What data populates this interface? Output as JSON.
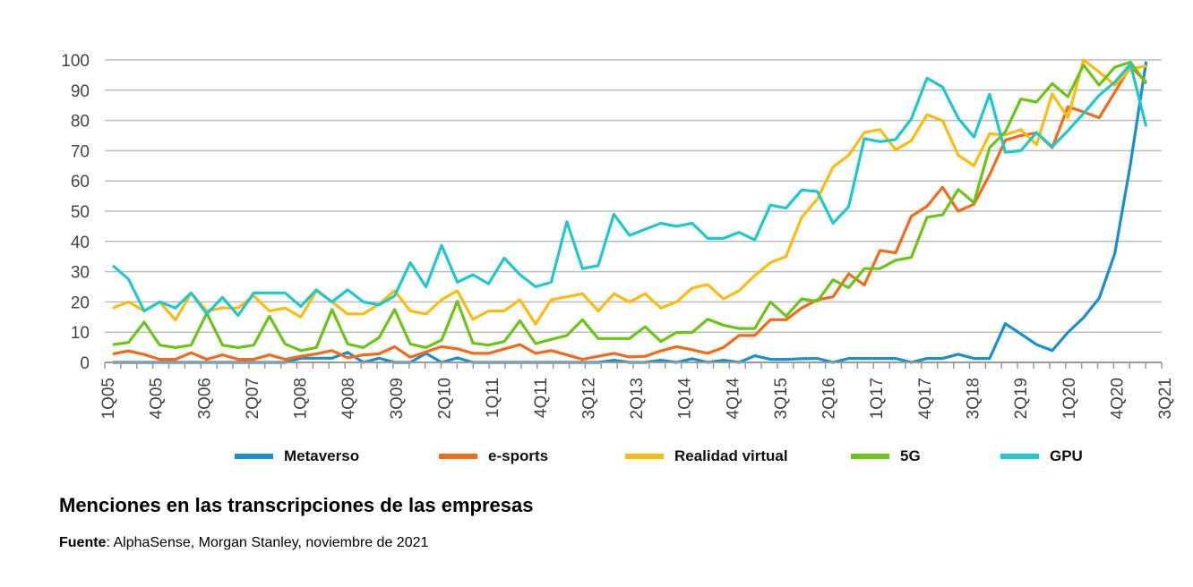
{
  "chart_data": {
    "type": "line",
    "title": "Menciones en las transcripciones de las empresas",
    "source_label": "Fuente",
    "source_text": ": AlphaSense, Morgan Stanley, noviembre de 2021",
    "ylim": [
      0,
      100
    ],
    "yticks": [
      0,
      10,
      20,
      30,
      40,
      50,
      60,
      70,
      80,
      90,
      100
    ],
    "grid": true,
    "legend_position": "bottom",
    "x_tick_labels": [
      "1Q05",
      "4Q05",
      "3Q06",
      "2Q07",
      "1Q08",
      "4Q08",
      "3Q09",
      "2Q10",
      "1Q11",
      "4Q11",
      "3Q12",
      "2Q13",
      "1Q14",
      "4Q14",
      "3Q15",
      "2Q16",
      "1Q17",
      "4Q17",
      "3Q18",
      "2Q19",
      "1Q20",
      "4Q20",
      "3Q21"
    ],
    "x_range": [
      "1Q05",
      "3Q21"
    ],
    "series": [
      {
        "name": "Metaverso",
        "color": "#1a8fd0",
        "values": [
          0,
          0,
          0,
          0,
          0,
          0,
          0,
          0,
          0,
          0,
          0,
          0,
          1.4,
          1.4,
          1.4,
          3.3,
          0,
          1.4,
          0,
          0,
          3,
          0,
          1.5,
          0,
          0,
          0,
          0,
          0,
          0,
          0,
          0,
          0,
          0.7,
          0,
          0,
          0.7,
          0,
          1.2,
          0,
          0.7,
          0,
          2.2,
          1,
          1,
          1.2,
          1.3,
          0,
          1.3,
          1.3,
          1.3,
          1.3,
          0,
          1.3,
          1.3,
          2.7,
          1.3,
          1.3,
          12.8,
          9.4,
          5.9,
          3.9,
          9.9,
          14.8,
          21.2,
          36,
          65.6,
          99.5
        ]
      },
      {
        "name": "e-sports",
        "color": "#f26a1b",
        "values": [
          2.8,
          3.8,
          2.6,
          1,
          1,
          3.2,
          1,
          2.5,
          1,
          1,
          2.5,
          1,
          2,
          2.8,
          3.9,
          1.5,
          2.5,
          2.8,
          5.2,
          1.7,
          3.5,
          5.2,
          4.5,
          3,
          3,
          4.4,
          5.9,
          3,
          3.9,
          2.5,
          1,
          2,
          3,
          1.8,
          2,
          3.8,
          5.2,
          4.2,
          3,
          4.9,
          8.9,
          8.9,
          14.1,
          14.1,
          18,
          20.7,
          21.7,
          29.3,
          25.6,
          37,
          36.2,
          48.3,
          51.6,
          57.9,
          50,
          52.3,
          62,
          73.5,
          75,
          75.9,
          71,
          84.5,
          82.8,
          80.9,
          89.3,
          98,
          92.7
        ]
      },
      {
        "name": "Realidad virtual",
        "color": "#fdbb12",
        "values": [
          18,
          20,
          17,
          20,
          14,
          23,
          17,
          18,
          18,
          22,
          17,
          18,
          15,
          23.7,
          20,
          16,
          16,
          19.3,
          23.7,
          17,
          16,
          20.7,
          23.7,
          14.2,
          17,
          17,
          20.7,
          12.7,
          20.7,
          21.7,
          22.7,
          17,
          22.7,
          20,
          22.7,
          18,
          20,
          24.6,
          25.7,
          21,
          23.7,
          28.7,
          33,
          35,
          48,
          54,
          64.6,
          68.5,
          76,
          77,
          70.3,
          73.3,
          81.9,
          79.9,
          68.5,
          65,
          75.6,
          75.2,
          77,
          72,
          88.8,
          80.9,
          100,
          96,
          91.7,
          97,
          98
        ]
      },
      {
        "name": "5G",
        "color": "#6cc417",
        "values": [
          5.9,
          6.6,
          13.3,
          5.7,
          4.9,
          5.7,
          16.3,
          5.7,
          4.9,
          5.7,
          15.3,
          6.1,
          3.9,
          4.9,
          17.5,
          6.1,
          4.9,
          8.2,
          17.5,
          6.1,
          4.9,
          7.4,
          20.2,
          6.4,
          5.7,
          6.9,
          13.8,
          6.2,
          7.6,
          8.9,
          14.1,
          7.9,
          7.9,
          7.9,
          11.8,
          6.9,
          9.9,
          9.9,
          14.3,
          12.3,
          11.2,
          11.2,
          20,
          15.3,
          21,
          20.2,
          27.3,
          24.7,
          31,
          31,
          33.8,
          34.7,
          48,
          48.8,
          57.2,
          52.8,
          71,
          76.2,
          87.1,
          86.1,
          92.2,
          87.8,
          98.3,
          91.7,
          97.6,
          99.3,
          92.2
        ]
      },
      {
        "name": "GPU",
        "color": "#1fc8cc",
        "values": [
          32,
          27.5,
          17,
          20,
          18,
          23,
          16,
          21.5,
          15.5,
          23,
          23,
          23,
          18.5,
          24,
          20,
          24,
          20,
          19,
          22,
          33,
          25,
          38.7,
          26.5,
          29,
          26,
          34.5,
          29,
          25,
          26.5,
          46.5,
          31,
          32,
          49,
          42,
          44,
          46,
          45,
          46,
          41,
          41,
          43,
          40.5,
          52,
          51,
          57,
          56.5,
          46,
          51.5,
          74,
          73,
          73.7,
          80.5,
          94,
          91,
          80.7,
          74.5,
          88.7,
          69.5,
          70,
          76,
          71.3,
          76.6,
          82.3,
          88.3,
          92.7,
          98.6,
          78
        ]
      }
    ],
    "colors": {
      "grid": "#bdbdbd",
      "axis": "#9a9a9a",
      "tick_text": "#444444"
    }
  }
}
